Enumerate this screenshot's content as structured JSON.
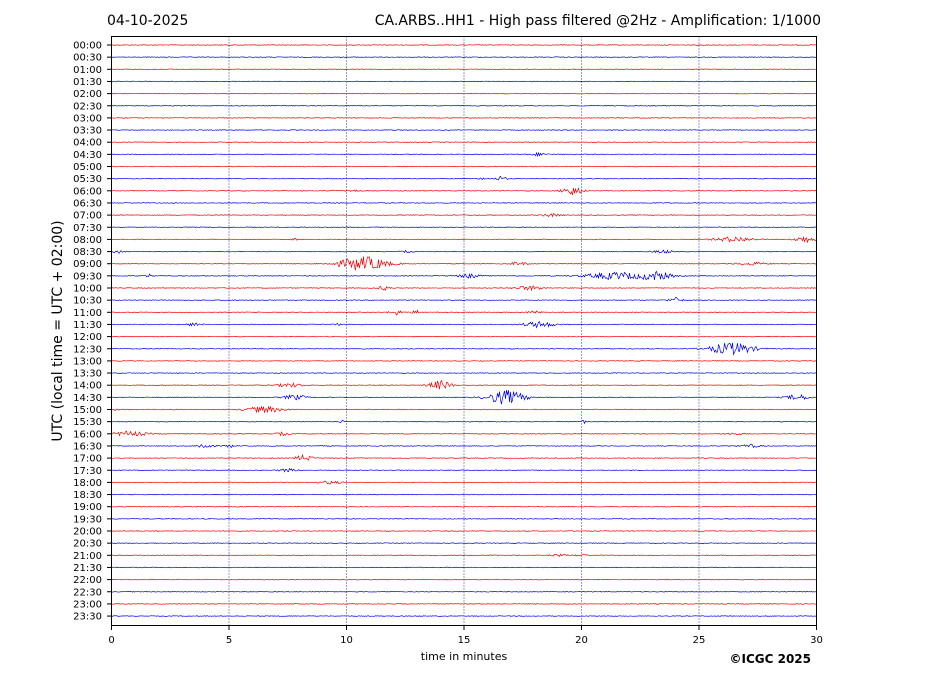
{
  "header": {
    "date": "04-10-2025",
    "title": "CA.ARBS..HH1 - High pass filtered @2Hz - Amplification: 1/1000"
  },
  "copyright": "©ICGC 2025",
  "chart_data": {
    "type": "line",
    "title": "CA.ARBS..HH1 - High pass filtered @2Hz - Amplification: 1/1000",
    "xlabel": "time in minutes",
    "ylabel": "UTC (local time = UTC + 02:00)",
    "xlim": [
      0,
      30
    ],
    "xticks": [
      "0",
      "5",
      "10",
      "15",
      "20",
      "25",
      "30"
    ],
    "x_gridlines": [
      5,
      10,
      15,
      20,
      25
    ],
    "row_colors": [
      "#ff0000",
      "#0000ff"
    ],
    "rows": [
      {
        "label": "00:00",
        "events": []
      },
      {
        "label": "00:30",
        "events": []
      },
      {
        "label": "01:00",
        "events": []
      },
      {
        "label": "01:30",
        "events": []
      },
      {
        "label": "02:00",
        "events": []
      },
      {
        "label": "02:30",
        "events": []
      },
      {
        "label": "03:00",
        "events": []
      },
      {
        "label": "03:30",
        "events": []
      },
      {
        "label": "04:00",
        "events": []
      },
      {
        "label": "04:30",
        "events": [
          {
            "t": 18.2,
            "amp": 1.5,
            "dur": 0.6
          }
        ]
      },
      {
        "label": "05:00",
        "events": []
      },
      {
        "label": "05:30",
        "events": [
          {
            "t": 15.8,
            "amp": 1.0,
            "dur": 0.3
          },
          {
            "t": 16.6,
            "amp": 2.5,
            "dur": 0.4
          }
        ]
      },
      {
        "label": "06:00",
        "events": [
          {
            "t": 9.5,
            "amp": 1.0,
            "dur": 0.3
          },
          {
            "t": 10.3,
            "amp": 1.5,
            "dur": 0.5
          },
          {
            "t": 19.6,
            "amp": 4.5,
            "dur": 0.8
          }
        ]
      },
      {
        "label": "06:30",
        "events": []
      },
      {
        "label": "07:00",
        "events": [
          {
            "t": 18.7,
            "amp": 1.5,
            "dur": 0.7
          }
        ]
      },
      {
        "label": "07:30",
        "events": []
      },
      {
        "label": "08:00",
        "events": [
          {
            "t": 7.8,
            "amp": 1.0,
            "dur": 0.2
          },
          {
            "t": 26.5,
            "amp": 2.5,
            "dur": 1.5
          },
          {
            "t": 29.5,
            "amp": 3.0,
            "dur": 0.8
          }
        ]
      },
      {
        "label": "08:30",
        "events": [
          {
            "t": 0.3,
            "amp": 1.5,
            "dur": 0.6
          },
          {
            "t": 12.6,
            "amp": 1.0,
            "dur": 0.4
          },
          {
            "t": 23.5,
            "amp": 1.5,
            "dur": 0.8
          }
        ]
      },
      {
        "label": "09:00",
        "events": [
          {
            "t": 10.7,
            "amp": 7.0,
            "dur": 2.0
          },
          {
            "t": 17.3,
            "amp": 1.5,
            "dur": 0.8
          },
          {
            "t": 27.2,
            "amp": 1.5,
            "dur": 1.2
          }
        ]
      },
      {
        "label": "09:30",
        "events": [
          {
            "t": 1.6,
            "amp": 1.5,
            "dur": 0.3
          },
          {
            "t": 15.2,
            "amp": 2.0,
            "dur": 0.9
          },
          {
            "t": 21.5,
            "amp": 3.5,
            "dur": 2.5
          },
          {
            "t": 23.2,
            "amp": 4.0,
            "dur": 1.2
          }
        ]
      },
      {
        "label": "10:00",
        "events": [
          {
            "t": 11.6,
            "amp": 2.0,
            "dur": 0.5
          },
          {
            "t": 17.8,
            "amp": 2.0,
            "dur": 1.2
          }
        ]
      },
      {
        "label": "10:30",
        "events": [
          {
            "t": 24.0,
            "amp": 2.5,
            "dur": 0.6
          }
        ]
      },
      {
        "label": "11:00",
        "events": [
          {
            "t": 12.1,
            "amp": 2.5,
            "dur": 0.5
          },
          {
            "t": 13.0,
            "amp": 2.0,
            "dur": 0.4
          },
          {
            "t": 18.0,
            "amp": 1.5,
            "dur": 0.5
          }
        ]
      },
      {
        "label": "11:30",
        "events": [
          {
            "t": 3.5,
            "amp": 1.5,
            "dur": 0.6
          },
          {
            "t": 9.6,
            "amp": 1.0,
            "dur": 0.3
          },
          {
            "t": 18.2,
            "amp": 3.0,
            "dur": 1.2
          }
        ]
      },
      {
        "label": "12:00",
        "events": []
      },
      {
        "label": "12:30",
        "events": [
          {
            "t": 26.4,
            "amp": 6.0,
            "dur": 1.8
          }
        ]
      },
      {
        "label": "13:00",
        "events": []
      },
      {
        "label": "13:30",
        "events": []
      },
      {
        "label": "14:00",
        "events": [
          {
            "t": 7.6,
            "amp": 2.0,
            "dur": 1.0
          },
          {
            "t": 14.0,
            "amp": 4.5,
            "dur": 0.9
          }
        ]
      },
      {
        "label": "14:30",
        "events": [
          {
            "t": 7.8,
            "amp": 2.5,
            "dur": 0.9
          },
          {
            "t": 16.8,
            "amp": 7.0,
            "dur": 1.5
          },
          {
            "t": 29.2,
            "amp": 2.5,
            "dur": 1.0
          }
        ]
      },
      {
        "label": "15:00",
        "events": [
          {
            "t": 0.2,
            "amp": 1.0,
            "dur": 0.2
          },
          {
            "t": 6.5,
            "amp": 3.0,
            "dur": 1.5
          }
        ]
      },
      {
        "label": "15:30",
        "events": [
          {
            "t": 9.8,
            "amp": 1.5,
            "dur": 0.2
          },
          {
            "t": 20.1,
            "amp": 1.5,
            "dur": 0.2
          }
        ]
      },
      {
        "label": "16:00",
        "events": [
          {
            "t": 0.8,
            "amp": 2.5,
            "dur": 1.3
          },
          {
            "t": 7.3,
            "amp": 1.5,
            "dur": 0.6
          },
          {
            "t": 26.5,
            "amp": 1.0,
            "dur": 0.8
          }
        ]
      },
      {
        "label": "16:30",
        "events": [
          {
            "t": 4.0,
            "amp": 3.0,
            "dur": 0.6
          },
          {
            "t": 5.0,
            "amp": 1.5,
            "dur": 0.4
          },
          {
            "t": 27.2,
            "amp": 1.5,
            "dur": 0.8
          }
        ]
      },
      {
        "label": "17:00",
        "events": [
          {
            "t": 8.2,
            "amp": 3.0,
            "dur": 0.7
          }
        ]
      },
      {
        "label": "17:30",
        "events": [
          {
            "t": 7.5,
            "amp": 1.5,
            "dur": 0.7
          }
        ]
      },
      {
        "label": "18:00",
        "events": [
          {
            "t": 9.3,
            "amp": 1.5,
            "dur": 0.8
          }
        ]
      },
      {
        "label": "18:30",
        "events": []
      },
      {
        "label": "19:00",
        "events": []
      },
      {
        "label": "19:30",
        "events": []
      },
      {
        "label": "20:00",
        "events": []
      },
      {
        "label": "20:30",
        "events": []
      },
      {
        "label": "21:00",
        "events": [
          {
            "t": 19.0,
            "amp": 1.0,
            "dur": 0.6
          },
          {
            "t": 20.0,
            "amp": 1.0,
            "dur": 0.5
          }
        ]
      },
      {
        "label": "21:30",
        "events": []
      },
      {
        "label": "22:00",
        "events": []
      },
      {
        "label": "22:30",
        "events": []
      },
      {
        "label": "23:00",
        "events": []
      },
      {
        "label": "23:30",
        "events": []
      }
    ]
  }
}
